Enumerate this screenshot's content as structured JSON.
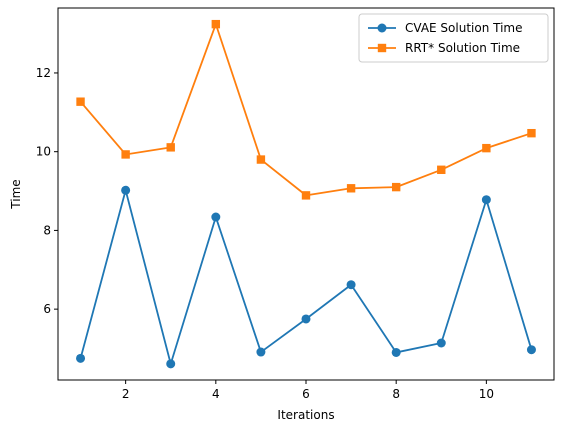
{
  "chart_data": {
    "type": "line",
    "xlabel": "Iterations",
    "ylabel": "Time",
    "x": [
      1,
      2,
      3,
      4,
      5,
      6,
      7,
      8,
      9,
      10,
      11
    ],
    "xlim": [
      0.5,
      11.5
    ],
    "ylim": [
      4.2,
      13.65
    ],
    "xticks": [
      2,
      4,
      6,
      8,
      10
    ],
    "yticks": [
      6,
      8,
      10,
      12
    ],
    "grid": false,
    "legend_position": "top-right",
    "series": [
      {
        "name": "CVAE Solution Time",
        "color": "#1f77b4",
        "marker": "circle",
        "values": [
          4.75,
          9.02,
          4.61,
          8.34,
          4.91,
          5.75,
          6.62,
          4.9,
          5.14,
          8.78,
          4.97
        ]
      },
      {
        "name": "RRT* Solution Time",
        "color": "#ff7f0e",
        "marker": "square",
        "values": [
          11.27,
          9.93,
          10.11,
          13.24,
          9.8,
          8.89,
          9.07,
          9.1,
          9.54,
          10.09,
          10.47
        ]
      }
    ]
  }
}
